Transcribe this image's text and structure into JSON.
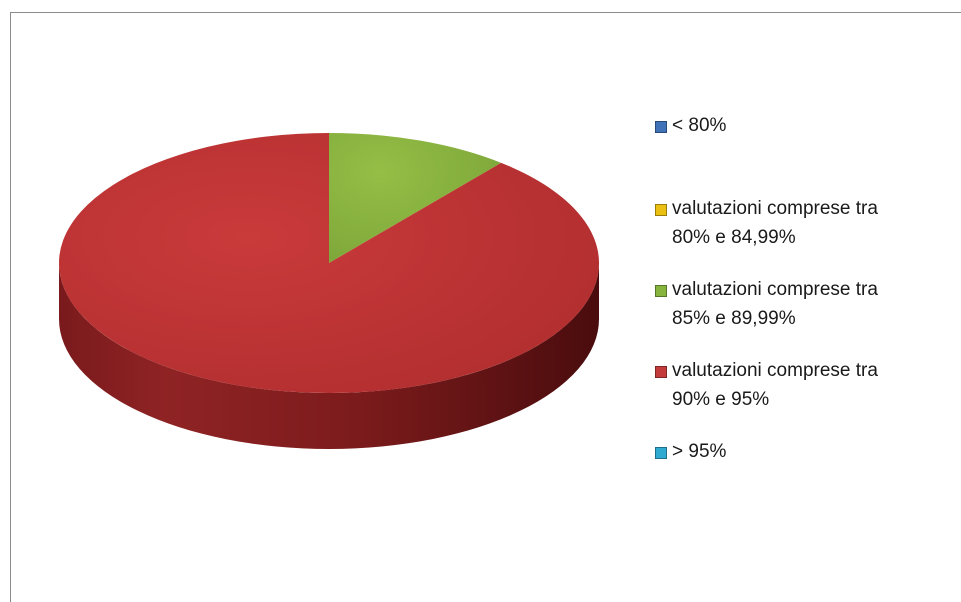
{
  "chart_data": {
    "type": "pie",
    "style": "3d",
    "legend_position": "right",
    "categories": [
      "< 80%",
      "valutazioni comprese tra\n80% e 84,99%",
      "valutazioni comprese tra\n85% e 89,99%",
      "valutazioni comprese tra\n90% e 95%",
      "> 95%"
    ],
    "values": [
      0,
      0,
      11,
      89,
      0
    ],
    "colors": [
      "#4f81bd",
      "#f2c318",
      "#8ab43f",
      "#c0393a",
      "#38afd1"
    ],
    "legend_colors": [
      "#3f72b6",
      "#ecc012",
      "#86b43c",
      "#c33b3b",
      "#2ea9cf"
    ]
  }
}
